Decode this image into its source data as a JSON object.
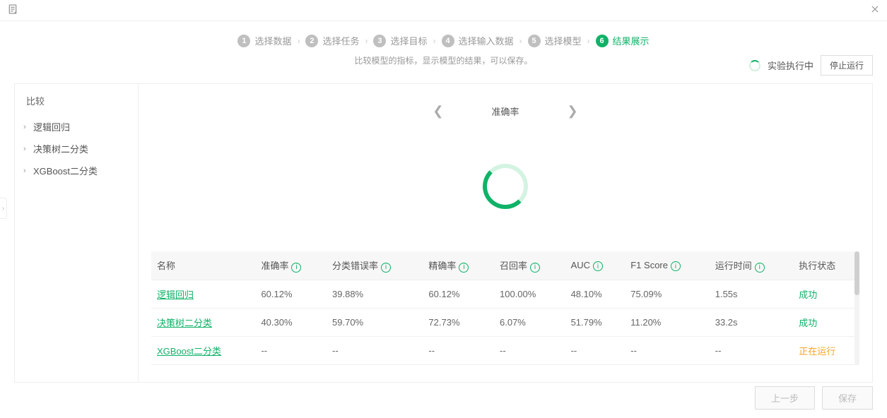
{
  "steps": [
    {
      "num": "1",
      "label": "选择数据"
    },
    {
      "num": "2",
      "label": "选择任务"
    },
    {
      "num": "3",
      "label": "选择目标"
    },
    {
      "num": "4",
      "label": "选择输入数据"
    },
    {
      "num": "5",
      "label": "选择模型"
    },
    {
      "num": "6",
      "label": "结果展示"
    }
  ],
  "active_step_index": 5,
  "subtitle": "比较模型的指标，显示模型的结果，可以保存。",
  "run_status_label": "实验执行中",
  "stop_button_label": "停止运行",
  "sidebar": {
    "title": "比较",
    "items": [
      "逻辑回归",
      "决策树二分类",
      "XGBoost二分类"
    ]
  },
  "metric_nav_label": "准确率",
  "table": {
    "columns": [
      "名称",
      "准确率",
      "分类错误率",
      "精确率",
      "召回率",
      "AUC",
      "F1 Score",
      "运行时间",
      "执行状态"
    ],
    "info_icon_cols": [
      1,
      2,
      3,
      4,
      5,
      6,
      7
    ],
    "rows": [
      {
        "name": "逻辑回归",
        "cells": [
          "60.12%",
          "39.88%",
          "60.12%",
          "100.00%",
          "48.10%",
          "75.09%",
          "1.55s"
        ],
        "status": "成功",
        "status_class": "status-success"
      },
      {
        "name": "决策树二分类",
        "cells": [
          "40.30%",
          "59.70%",
          "72.73%",
          "6.07%",
          "51.79%",
          "11.20%",
          "33.2s"
        ],
        "status": "成功",
        "status_class": "status-success"
      },
      {
        "name": "XGBoost二分类",
        "cells": [
          "--",
          "--",
          "--",
          "--",
          "--",
          "--",
          "--"
        ],
        "status": "正在运行",
        "status_class": "status-running"
      }
    ]
  },
  "footer": {
    "prev": "上一步",
    "save": "保存"
  },
  "colors": {
    "accent": "#10b268",
    "warn": "#f5a623"
  }
}
